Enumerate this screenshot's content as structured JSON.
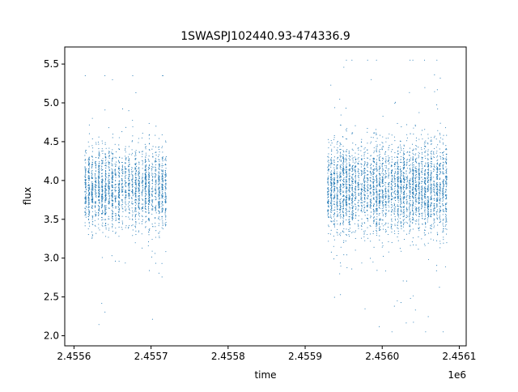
{
  "chart_data": {
    "type": "scatter",
    "title": "1SWASPJ102440.93-474336.9",
    "xlabel": "time",
    "ylabel": "flux",
    "x_offset_label": "1e6",
    "x_scale": 1000000,
    "xlim": [
      2.455588,
      2.456109
    ],
    "ylim": [
      1.87,
      5.72
    ],
    "x_ticks": [
      {
        "value": 2.4556,
        "label": "2.4556"
      },
      {
        "value": 2.4557,
        "label": "2.4557"
      },
      {
        "value": 2.4558,
        "label": "2.4558"
      },
      {
        "value": 2.4559,
        "label": "2.4559"
      },
      {
        "value": 2.456,
        "label": "2.4560"
      },
      {
        "value": 2.4561,
        "label": "2.4561"
      }
    ],
    "y_ticks": [
      {
        "value": 2.0,
        "label": "2.0"
      },
      {
        "value": 2.5,
        "label": "2.5"
      },
      {
        "value": 3.0,
        "label": "3.0"
      },
      {
        "value": 3.5,
        "label": "3.5"
      },
      {
        "value": 4.0,
        "label": "4.0"
      },
      {
        "value": 4.5,
        "label": "4.5"
      },
      {
        "value": 5.0,
        "label": "5.0"
      },
      {
        "value": 5.5,
        "label": "5.5"
      }
    ],
    "grid": false,
    "legend": "none",
    "point_color": "#1f77b4",
    "series": [
      {
        "segments": [
          {
            "x_start": 2.455615,
            "x_end": 2.455719,
            "nights": 25,
            "flux_center": 3.9,
            "flux_spread": 0.25,
            "flux_min": 2.05,
            "flux_max": 5.35
          },
          {
            "x_start": 2.45593,
            "x_end": 2.456083,
            "nights": 40,
            "flux_center": 3.9,
            "flux_spread": 0.28,
            "flux_min": 2.05,
            "flux_max": 5.55
          }
        ]
      }
    ]
  }
}
